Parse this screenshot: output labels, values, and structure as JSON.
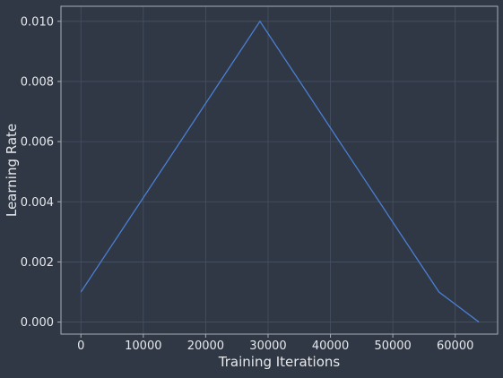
{
  "chart_data": {
    "type": "line",
    "xlabel": "Training Iterations",
    "ylabel": "Learning Rate",
    "xlim": [
      -3200,
      66800
    ],
    "ylim": [
      -0.0004,
      0.0105
    ],
    "x_ticks": [
      0,
      10000,
      20000,
      30000,
      40000,
      50000,
      60000
    ],
    "y_ticks": [
      0.0,
      0.002,
      0.004,
      0.006,
      0.008,
      0.01
    ],
    "x_tick_labels": [
      "0",
      "10000",
      "20000",
      "30000",
      "40000",
      "50000",
      "60000"
    ],
    "y_tick_labels": [
      "0.000",
      "0.002",
      "0.004",
      "0.006",
      "0.008",
      "0.010"
    ],
    "grid": true,
    "series": [
      {
        "x": [
          0,
          28700,
          57400,
          63800
        ],
        "y": [
          0.001,
          0.01,
          0.001,
          0.0
        ]
      }
    ],
    "colors": {
      "background": "#303845",
      "grid": "#465163",
      "axes": "#a7adb6",
      "line": "#4a7fd4",
      "text": "#e6e8eb"
    }
  }
}
